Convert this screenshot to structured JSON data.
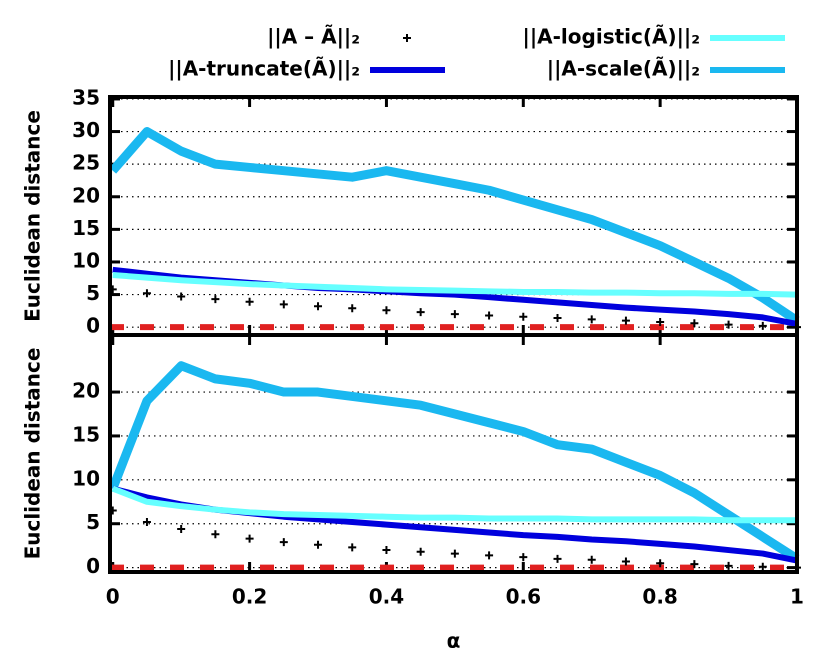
{
  "chart_data": [
    {
      "type": "line",
      "ylabel": "Euclidean distance",
      "legend": "top",
      "grid": true,
      "reference_line": 0,
      "reference_color": "#e02020",
      "xlim": [
        -0.004,
        1
      ],
      "ylim": [
        -1.2,
        35.3
      ],
      "yticks": [
        0,
        5,
        10,
        15,
        20,
        25,
        30,
        35
      ],
      "x": [
        0,
        0.05,
        0.1,
        0.15,
        0.2,
        0.25,
        0.3,
        0.35,
        0.4,
        0.45,
        0.5,
        0.55,
        0.6,
        0.65,
        0.7,
        0.75,
        0.8,
        0.85,
        0.9,
        0.95,
        1
      ],
      "series": [
        {
          "name": "||A – Ã||₂",
          "color": "#000000",
          "marker": "plus",
          "values": [
            5.8,
            5.2,
            4.7,
            4.3,
            3.9,
            3.5,
            3.2,
            2.9,
            2.6,
            2.3,
            2.0,
            1.8,
            1.6,
            1.4,
            1.2,
            1.0,
            0.8,
            0.6,
            0.4,
            0.2,
            0.0
          ]
        },
        {
          "name": "||A-truncate(Ã)||₂",
          "color": "#0000dd",
          "values": [
            8.8,
            8.2,
            7.6,
            7.2,
            6.8,
            6.4,
            6.0,
            5.8,
            5.5,
            5.2,
            5.0,
            4.6,
            4.2,
            3.8,
            3.4,
            3.0,
            2.7,
            2.4,
            2.0,
            1.5,
            0.5
          ]
        },
        {
          "name": "||A-logistic(Ã)||₂",
          "color": "#66ffff",
          "values": [
            8.0,
            7.6,
            7.2,
            6.9,
            6.6,
            6.4,
            6.2,
            6.0,
            5.8,
            5.7,
            5.6,
            5.5,
            5.4,
            5.4,
            5.3,
            5.3,
            5.2,
            5.2,
            5.1,
            5.1,
            5.0
          ]
        },
        {
          "name": "||A-scale(Ã)||₂",
          "color": "#1ab8f0",
          "values": [
            24,
            30,
            27,
            25,
            24.5,
            24,
            23.5,
            23,
            24,
            23,
            22,
            21,
            19.5,
            18,
            16.5,
            14.5,
            12.5,
            10,
            7.5,
            4.5,
            1.0
          ]
        }
      ]
    },
    {
      "type": "line",
      "ylabel": "Euclidean distance",
      "xlabel": "α",
      "grid": true,
      "reference_line": 0,
      "reference_color": "#e02020",
      "xlim": [
        -0.004,
        1
      ],
      "ylim": [
        -0.5,
        26.5
      ],
      "yticks": [
        0,
        5,
        10,
        15,
        20
      ],
      "xticks": [
        0,
        0.2,
        0.4,
        0.6,
        0.8,
        1
      ],
      "x": [
        0,
        0.05,
        0.1,
        0.15,
        0.2,
        0.25,
        0.3,
        0.35,
        0.4,
        0.45,
        0.5,
        0.55,
        0.6,
        0.65,
        0.7,
        0.75,
        0.8,
        0.85,
        0.9,
        0.95,
        1
      ],
      "series": [
        {
          "color": "#000000",
          "marker": "plus",
          "values": [
            6.5,
            5.2,
            4.4,
            3.8,
            3.3,
            2.9,
            2.6,
            2.3,
            2.0,
            1.8,
            1.6,
            1.4,
            1.2,
            1.0,
            0.9,
            0.7,
            0.5,
            0.4,
            0.2,
            0.1,
            0.0
          ]
        },
        {
          "color": "#0000dd",
          "values": [
            9.0,
            8.0,
            7.2,
            6.6,
            6.2,
            5.8,
            5.5,
            5.2,
            4.9,
            4.6,
            4.3,
            4.0,
            3.7,
            3.5,
            3.2,
            3.0,
            2.7,
            2.4,
            2.0,
            1.6,
            0.8
          ]
        },
        {
          "color": "#66ffff",
          "values": [
            9.0,
            7.5,
            7.0,
            6.6,
            6.3,
            6.1,
            6.0,
            5.9,
            5.8,
            5.7,
            5.7,
            5.6,
            5.6,
            5.6,
            5.5,
            5.5,
            5.5,
            5.5,
            5.4,
            5.4,
            5.4
          ]
        },
        {
          "color": "#1ab8f0",
          "values": [
            9.0,
            19,
            23,
            21.5,
            21,
            20,
            20,
            19.5,
            19,
            18.5,
            17.5,
            16.5,
            15.5,
            14,
            13.5,
            12,
            10.5,
            8.5,
            6,
            3.5,
            1.0
          ]
        }
      ]
    }
  ]
}
